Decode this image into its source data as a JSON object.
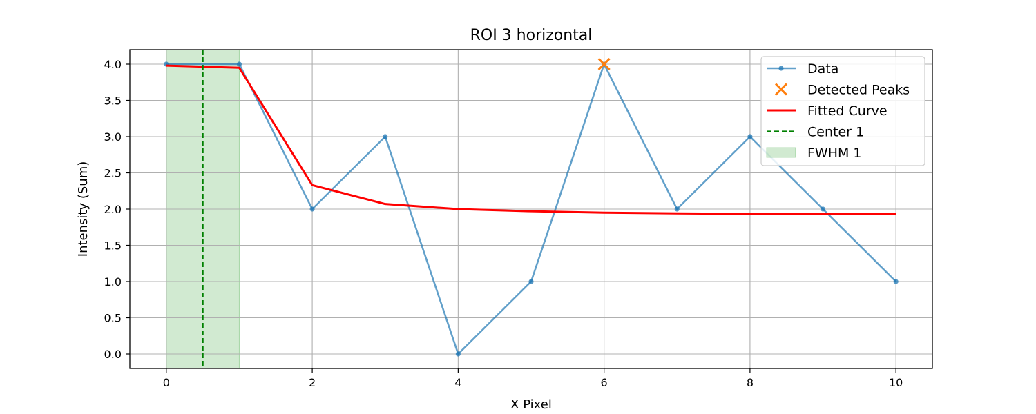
{
  "chart_data": {
    "type": "line",
    "title": "ROI 3 horizontal",
    "xlabel": "X Pixel",
    "ylabel": "Intensity (Sum)",
    "xlim": [
      -0.5,
      10.5
    ],
    "ylim": [
      -0.2,
      4.2
    ],
    "xticks": [
      0,
      2,
      4,
      6,
      8,
      10
    ],
    "yticks": [
      0.0,
      0.5,
      1.0,
      1.5,
      2.0,
      2.5,
      3.0,
      3.5,
      4.0
    ],
    "grid": true,
    "legend_position": "top-right",
    "series": [
      {
        "name": "Data",
        "kind": "line-marker",
        "color": "#1f77b4",
        "x": [
          0,
          1,
          2,
          3,
          4,
          5,
          6,
          7,
          8,
          9,
          10
        ],
        "y": [
          4,
          4,
          2,
          3,
          0,
          1,
          4,
          2,
          3,
          2,
          1
        ]
      },
      {
        "name": "Detected Peaks",
        "kind": "marker-x",
        "color": "#ff7f0e",
        "x": [
          6
        ],
        "y": [
          4
        ]
      },
      {
        "name": "Fitted Curve",
        "kind": "line",
        "color": "#ff0000",
        "x": [
          0,
          1,
          2,
          3,
          4,
          5,
          6,
          7,
          8,
          9,
          10
        ],
        "y": [
          3.98,
          3.95,
          2.33,
          2.07,
          2.0,
          1.97,
          1.95,
          1.94,
          1.935,
          1.93,
          1.928
        ]
      },
      {
        "name": "Center 1",
        "kind": "vline-dashed",
        "color": "#008000",
        "x": 0.5
      },
      {
        "name": "FWHM 1",
        "kind": "vspan",
        "color": "#2ca02c",
        "x_range": [
          0,
          1
        ]
      }
    ]
  }
}
